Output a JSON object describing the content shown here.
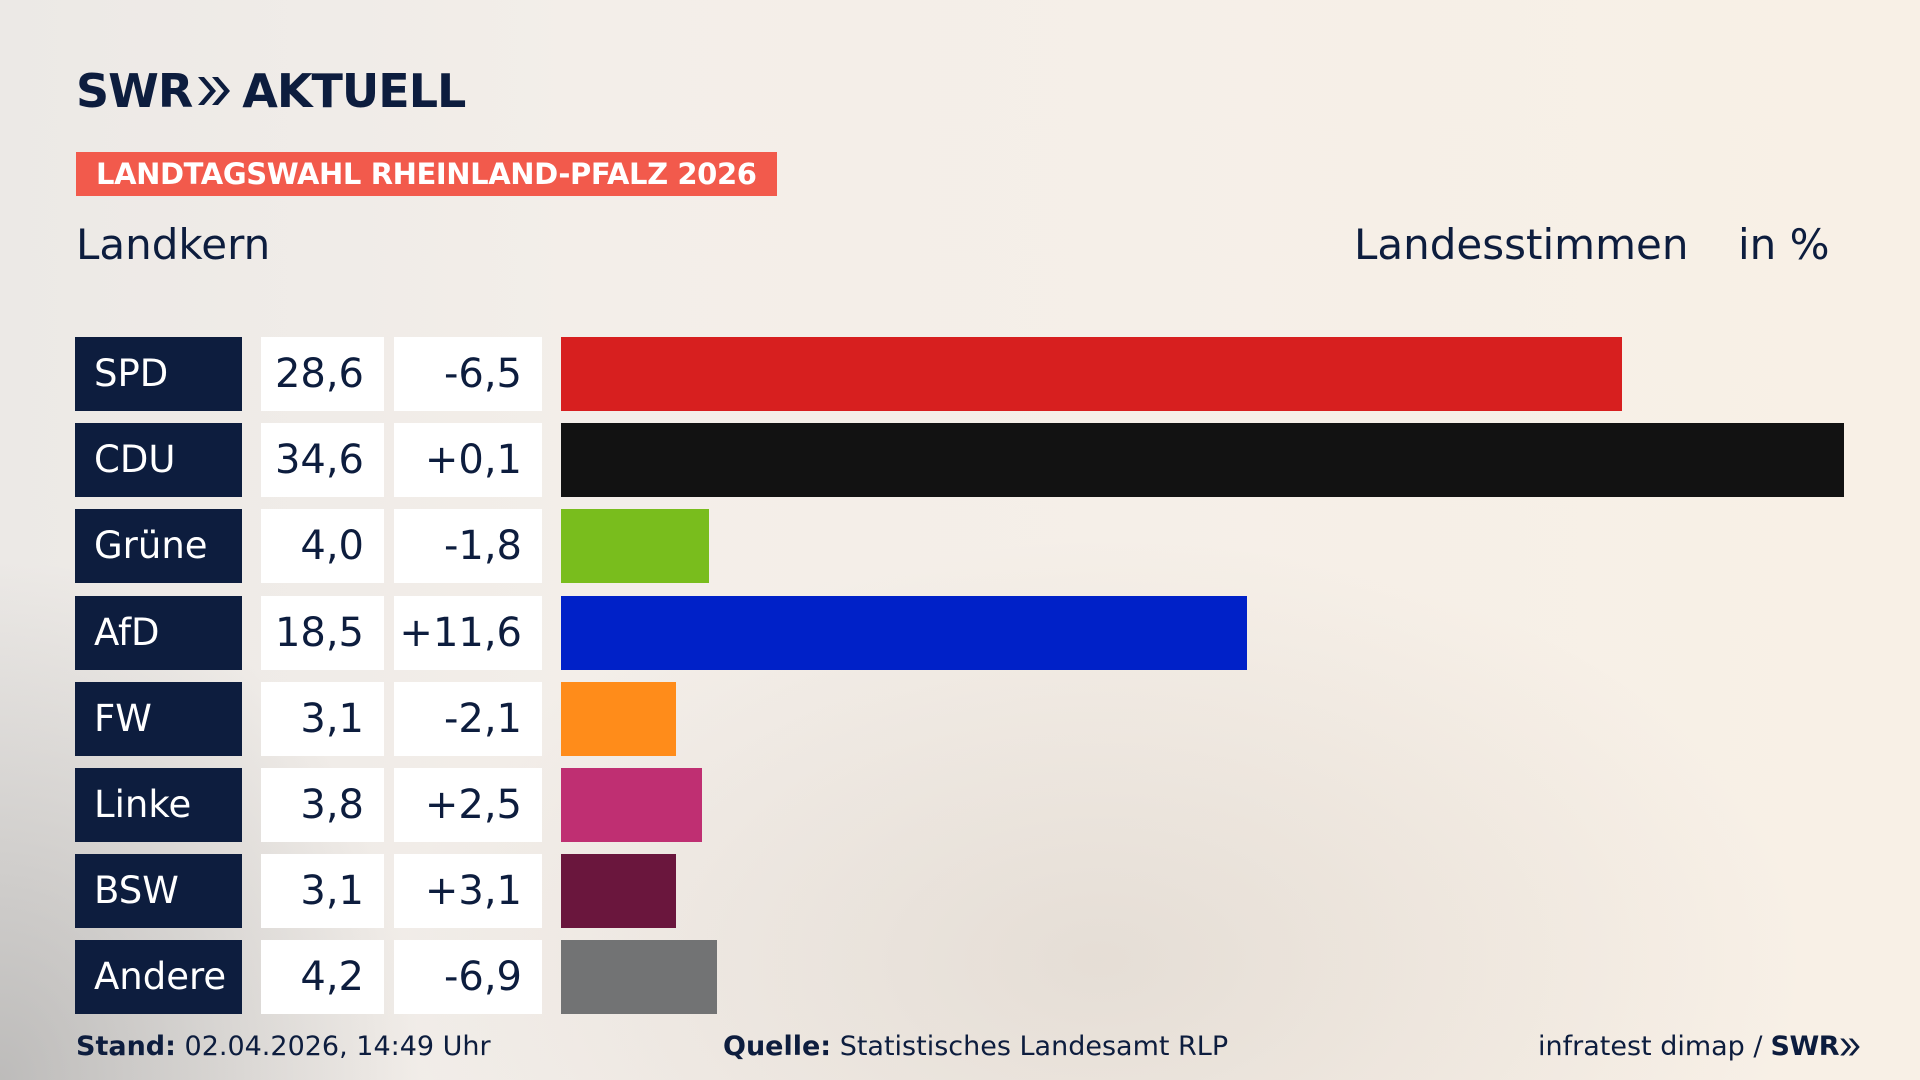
{
  "header": {
    "brand": "SWR",
    "brand_suffix": "AKTUELL",
    "election_tag": "LANDTAGSWAHL RHEINLAND-PFALZ 2026",
    "region": "Landkern",
    "vote_type": "Landesstimmen",
    "unit": "in %"
  },
  "chart_data": {
    "type": "bar",
    "orientation": "horizontal",
    "categories": [
      "SPD",
      "CDU",
      "Grüne",
      "AfD",
      "FW",
      "Linke",
      "BSW",
      "Andere"
    ],
    "values": [
      28.6,
      34.6,
      4.0,
      18.5,
      3.1,
      3.8,
      3.1,
      4.2
    ],
    "value_labels": [
      "28,6",
      "34,6",
      "4,0",
      "18,5",
      "3,1",
      "3,8",
      "3,1",
      "4,2"
    ],
    "diff_labels": [
      "-6,5",
      "+0,1",
      "-1,8",
      "+11,6",
      "-2,1",
      "+2,5",
      "+3,1",
      "-6,9"
    ],
    "diffs": [
      -6.5,
      0.1,
      -1.8,
      11.6,
      -2.1,
      2.5,
      3.1,
      -6.9
    ],
    "colors": [
      "#d71f1f",
      "#121212",
      "#79bd1d",
      "#0021c8",
      "#ff8c1a",
      "#bf2f72",
      "#6a163d",
      "#727374"
    ],
    "xlim": [
      0,
      34.6
    ],
    "grid": false,
    "legend": "none"
  },
  "footer": {
    "stand_label": "Stand:",
    "stand_value": "02.04.2026, 14:49 Uhr",
    "source_label": "Quelle:",
    "source_value": "Statistisches Landesamt RLP",
    "credit": "infratest dimap /",
    "credit_brand": "SWR"
  }
}
